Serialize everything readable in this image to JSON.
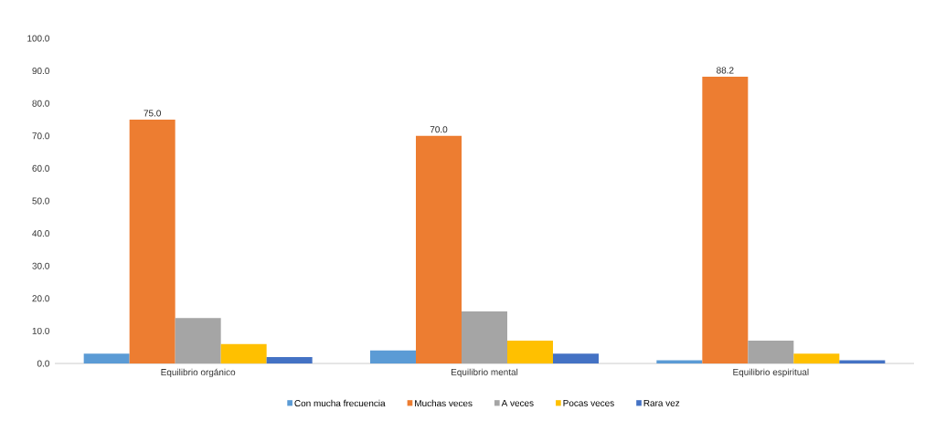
{
  "chart_data": {
    "type": "bar",
    "categories": [
      "Equilibrio orgánico",
      "Equilibrio mental",
      "Equilibrio espiritual"
    ],
    "series": [
      {
        "name": "Con mucha frecuencia",
        "color": "#5b9bd5",
        "values": [
          3,
          4,
          1
        ]
      },
      {
        "name": "Muchas veces",
        "color": "#ed7d31",
        "values": [
          75.0,
          70.0,
          88.2
        ],
        "value_labels": [
          "75.0",
          "70.0",
          "88.2"
        ]
      },
      {
        "name": "A veces",
        "color": "#a5a5a5",
        "values": [
          14,
          16,
          7
        ]
      },
      {
        "name": "Pocas veces",
        "color": "#ffc000",
        "values": [
          6,
          7,
          3
        ]
      },
      {
        "name": "Rara vez",
        "color": "#4472c4",
        "values": [
          2,
          3,
          1
        ]
      }
    ],
    "ylim": [
      0,
      100
    ],
    "yticks": [
      {
        "value": 0,
        "label": "0.0"
      },
      {
        "value": 10,
        "label": "10.0"
      },
      {
        "value": 20,
        "label": "20.0"
      },
      {
        "value": 30,
        "label": "30.0"
      },
      {
        "value": 40,
        "label": "40.0"
      },
      {
        "value": 50,
        "label": "50.0"
      },
      {
        "value": 60,
        "label": "60.0"
      },
      {
        "value": 70,
        "label": "70.0"
      },
      {
        "value": 80,
        "label": "80.0"
      },
      {
        "value": 90,
        "label": "90.0"
      },
      {
        "value": 100,
        "label": "100.0"
      }
    ],
    "grid": false,
    "legend": "bottom"
  }
}
